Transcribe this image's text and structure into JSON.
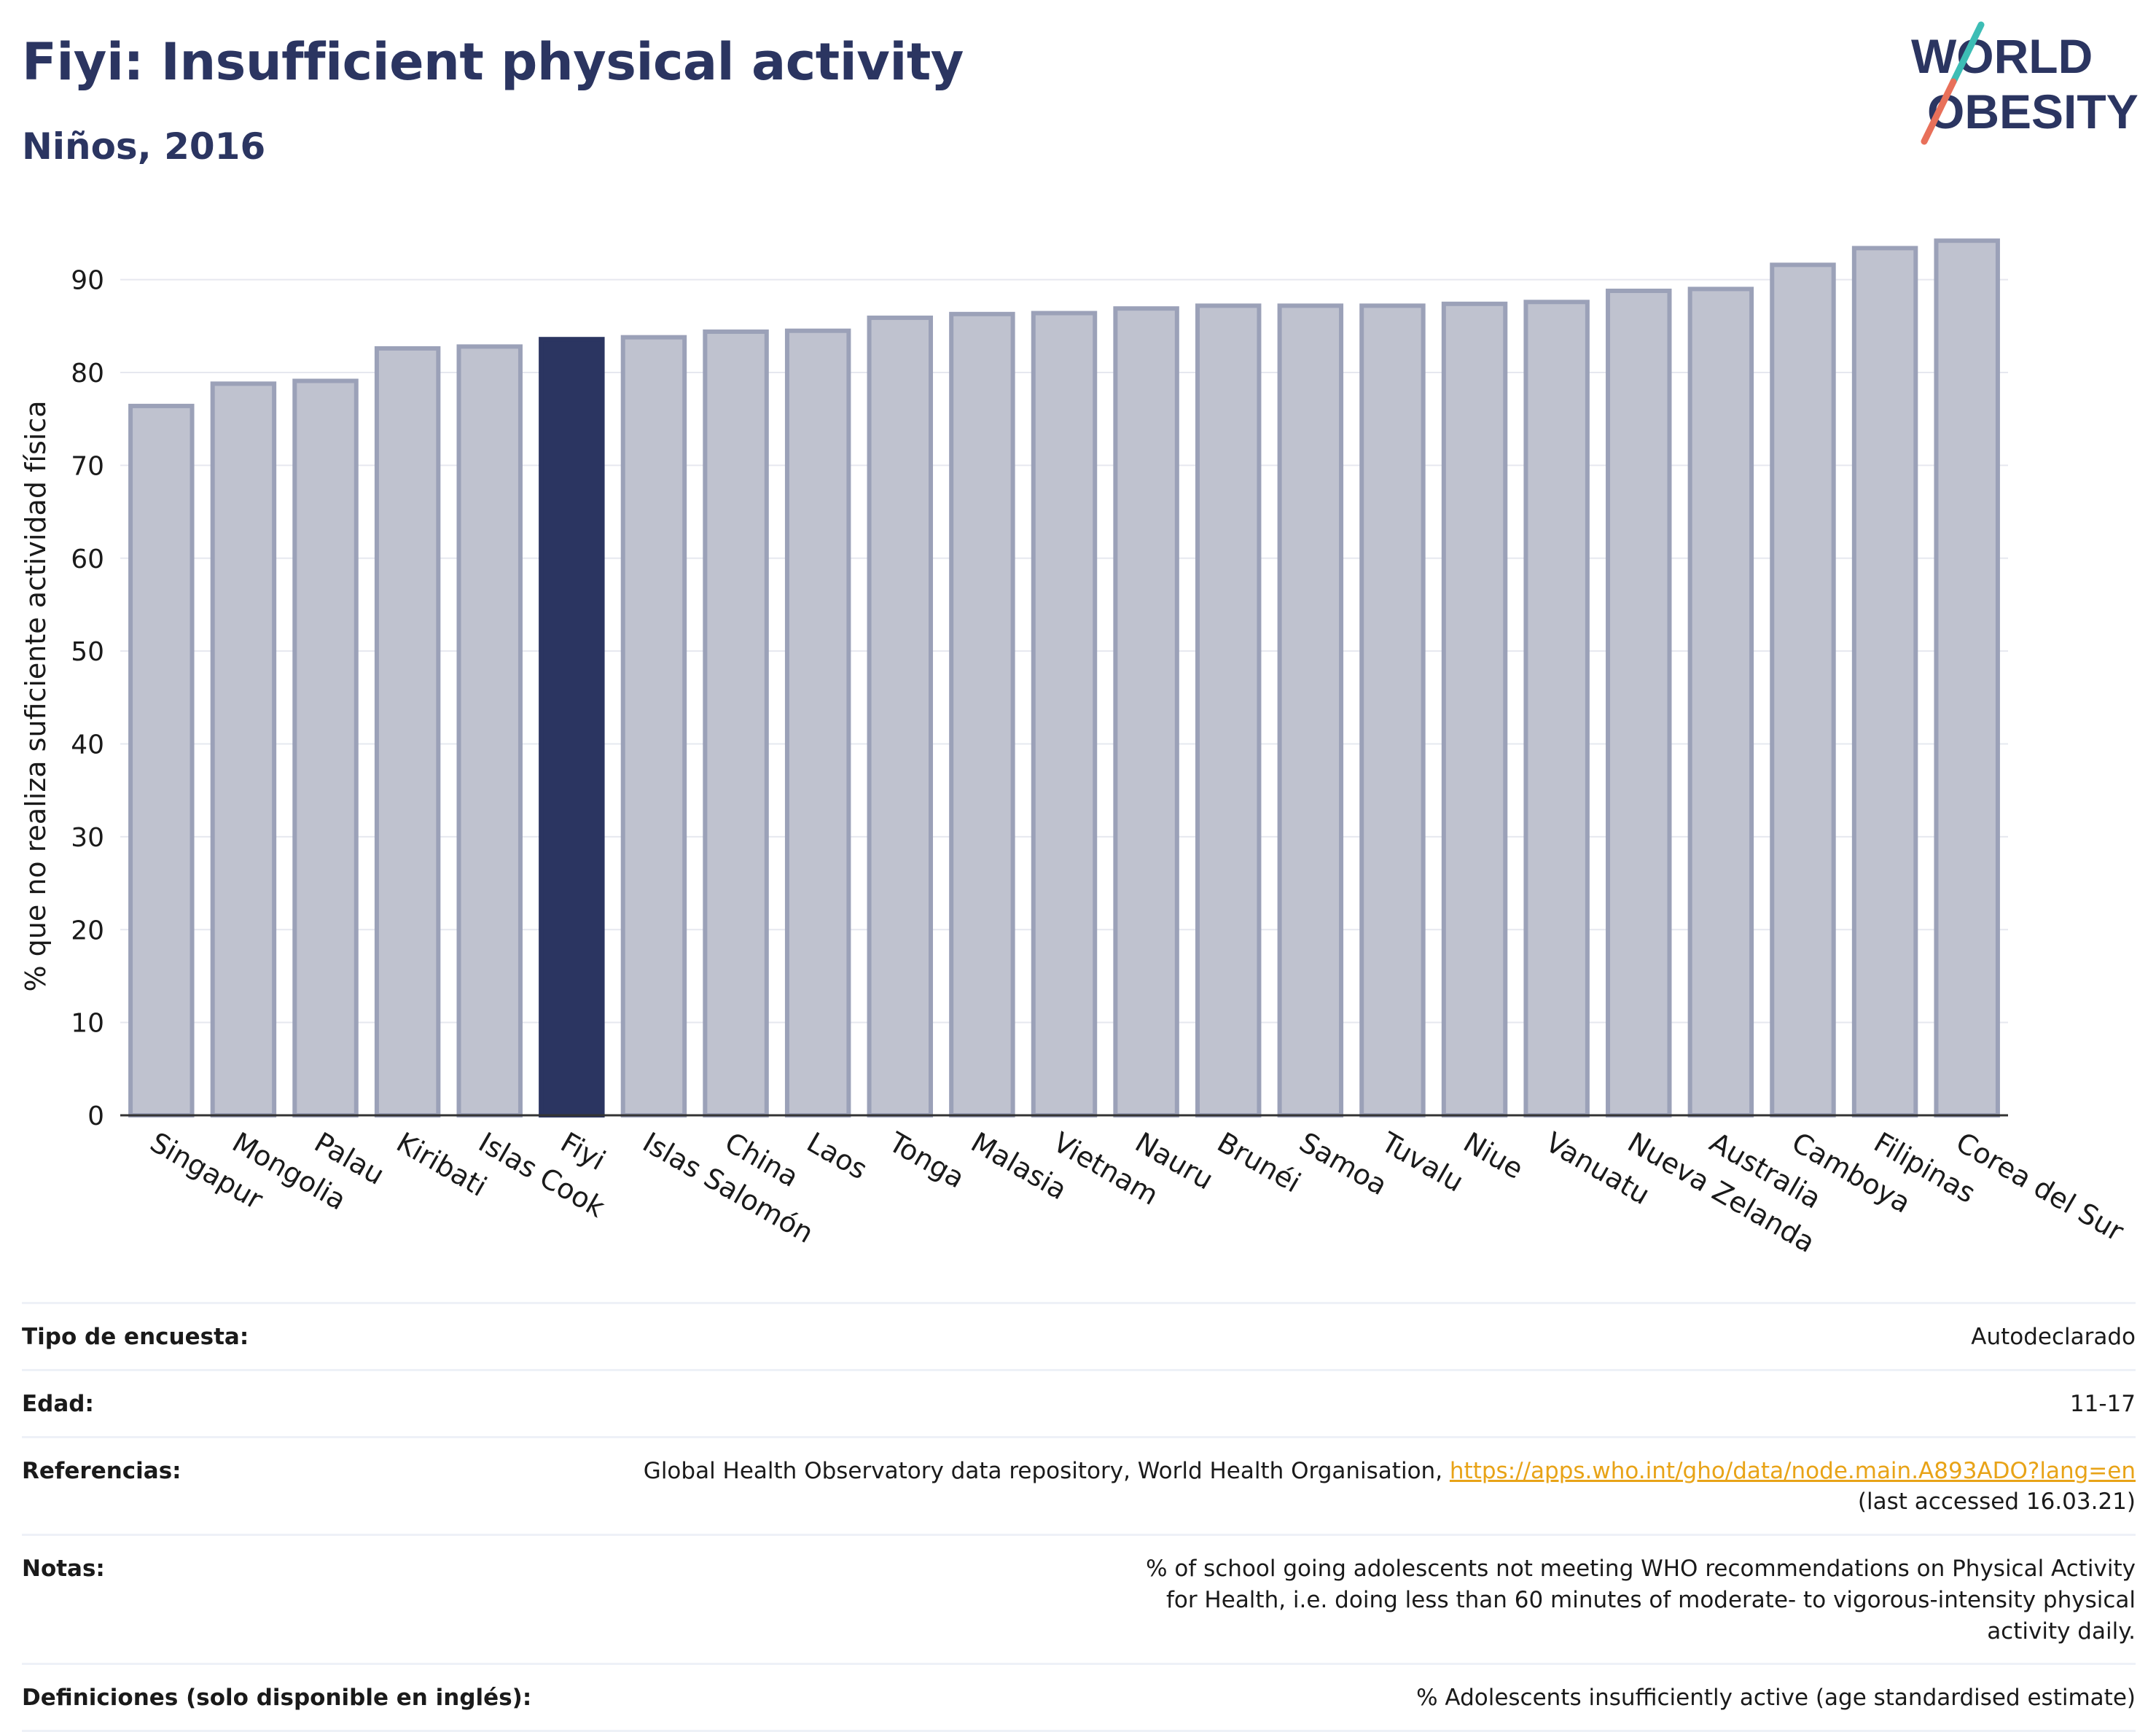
{
  "header": {
    "title": "Fiyi: Insufficient physical activity",
    "subtitle": "Niños, 2016"
  },
  "logo": {
    "line1": "WORLD",
    "line2": "OBESITY",
    "slash_color_top": "#3dbdb5",
    "slash_color_bottom": "#e8705a"
  },
  "colors": {
    "highlight": "#2b3561",
    "bar": "#bfc2cf",
    "bar_border": "#9ba1b8",
    "grid": "#e6e8ef"
  },
  "chart_data": {
    "type": "bar",
    "title": "Fiyi: Insufficient physical activity",
    "subtitle": "Niños, 2016",
    "xlabel": "",
    "ylabel": "% que no realiza suficiente actividad física",
    "ylim": [
      0,
      95
    ],
    "yticks": [
      0,
      10,
      20,
      30,
      40,
      50,
      60,
      70,
      80,
      90
    ],
    "grid": true,
    "highlight": "Fiyi",
    "categories": [
      "Singapur",
      "Mongolia",
      "Palau",
      "Kiribati",
      "Islas Cook",
      "Fiyi",
      "Islas Salomón",
      "China",
      "Laos",
      "Tonga",
      "Malasia",
      "Vietnam",
      "Nauru",
      "Brunéi",
      "Samoa",
      "Tuvalu",
      "Niue",
      "Vanuatu",
      "Nueva Zelanda",
      "Australia",
      "Camboya",
      "Filipinas",
      "Corea del Sur"
    ],
    "values": [
      76.4,
      78.8,
      79.1,
      82.6,
      82.8,
      83.6,
      83.8,
      84.4,
      84.5,
      85.9,
      86.3,
      86.4,
      86.9,
      87.2,
      87.2,
      87.2,
      87.4,
      87.6,
      88.8,
      89.0,
      91.6,
      93.4,
      94.2
    ]
  },
  "info": {
    "rows": [
      {
        "label": "Tipo de encuesta:",
        "value": "Autodeclarado"
      },
      {
        "label": "Edad:",
        "value": "11-17"
      },
      {
        "label": "Referencias:",
        "value": "Global Health Observatory data repository, World Health Organisation, ",
        "link": "https://apps.who.int/gho/data/node.main.A893ADO?lang=en",
        "value2": "(last accessed 16.03.21)"
      },
      {
        "label": "Notas:",
        "value": "% of school going adolescents not meeting WHO recommendations on Physical Activity for Health, i.e. doing less than 60 minutes of moderate- to vigorous-intensity physical activity daily."
      },
      {
        "label": "Definiciones (solo disponible en inglés):",
        "value": "% Adolescents insufficiently active (age standardised estimate)"
      }
    ]
  }
}
